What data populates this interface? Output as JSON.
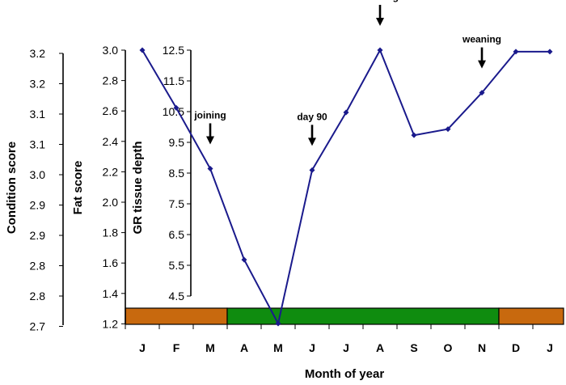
{
  "chart_data": {
    "type": "line",
    "xlabel": "Month of year",
    "categories": [
      "J",
      "F",
      "M",
      "A",
      "M",
      "J",
      "J",
      "A",
      "S",
      "O",
      "N",
      "D",
      "J"
    ],
    "axes": {
      "condition": {
        "label": "Condition score",
        "ticks": [
          "3.2",
          "3.2",
          "3.1",
          "3.1",
          "3.0",
          "2.9",
          "2.9",
          "2.8",
          "2.8",
          "2.7"
        ]
      },
      "fat": {
        "label": "Fat score",
        "ticks": [
          "3.0",
          "2.8",
          "2.6",
          "2.4",
          "2.2",
          "2.0",
          "1.8",
          "1.6",
          "1.4",
          "1.2"
        ],
        "ylim": [
          1.2,
          3.0
        ]
      },
      "gr": {
        "label": "GR tissue depth",
        "ticks": [
          "12.5",
          "11.5",
          "10.5",
          "9.5",
          "8.5",
          "7.5",
          "6.5",
          "5.5",
          "4.5"
        ]
      }
    },
    "series": [
      {
        "color": "#1a1a8c",
        "values": [
          3.0,
          2.62,
          2.22,
          1.62,
          1.2,
          2.21,
          2.59,
          3.0,
          2.44,
          2.48,
          2.72,
          2.99,
          2.99
        ]
      }
    ],
    "annotations": [
      {
        "text": "joining",
        "month_index": 2
      },
      {
        "text": "day 90",
        "month_index": 5
      },
      {
        "text": "lambing",
        "month_index": 7
      },
      {
        "text": "weaning",
        "month_index": 10
      }
    ],
    "season_bar": [
      {
        "from_index": 0,
        "to_index": 3,
        "color": "#c8690e"
      },
      {
        "from_index": 3,
        "to_index": 11,
        "color": "#0f8c0f"
      },
      {
        "from_index": 11,
        "to_index": 13,
        "color": "#c8690e"
      }
    ],
    "grid": false,
    "legend": "none"
  }
}
